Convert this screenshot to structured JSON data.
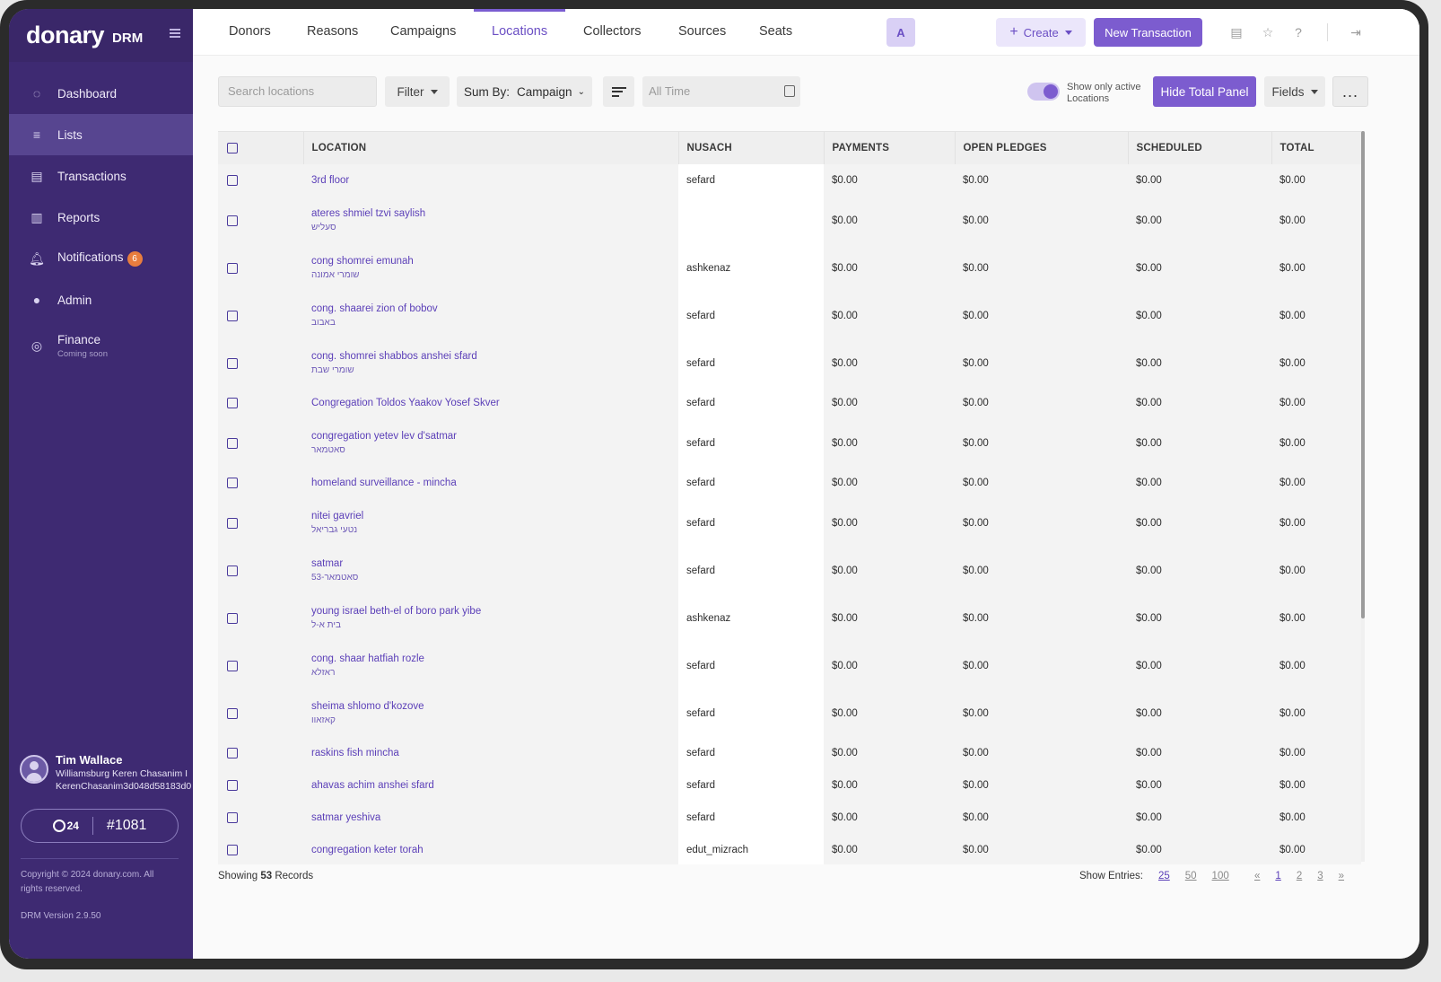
{
  "brand": {
    "logo": "donary",
    "product": "DRM"
  },
  "sidebar": {
    "items": [
      {
        "label": "Dashboard",
        "icon": "dashboard-icon"
      },
      {
        "label": "Lists",
        "icon": "list-icon",
        "active": true
      },
      {
        "label": "Transactions",
        "icon": "transactions-icon"
      },
      {
        "label": "Reports",
        "icon": "reports-icon"
      },
      {
        "label": "Notifications",
        "icon": "bell-icon",
        "badge": "6"
      },
      {
        "label": "Admin",
        "icon": "admin-icon"
      },
      {
        "label": "Finance",
        "sub": "Coming soon",
        "icon": "finance-icon"
      }
    ],
    "user": {
      "name": "Tim Wallace",
      "org": "Williamsburg Keren Chasanim I",
      "id": "KerenChasanim3d048d58183d0"
    },
    "seat": {
      "logo": "24",
      "number": "#1081"
    },
    "copyright": "Copyright © 2024 donary.com. All rights reserved.",
    "version": "DRM Version 2.9.50"
  },
  "topbar": {
    "tabs": [
      "Donors",
      "Reasons",
      "Campaigns",
      "Locations",
      "Collectors",
      "Sources",
      "Seats"
    ],
    "active_tab": "Locations",
    "create_label": "Create",
    "new_transaction_label": "New Transaction"
  },
  "toolbar": {
    "search_placeholder": "Search locations",
    "filter_label": "Filter",
    "sum_by_label": "Sum By:",
    "sum_by_value": "Campaign",
    "date_placeholder": "All Time",
    "toggle_label": "Show only active Locations",
    "toggle_on": true,
    "hide_panel_label": "Hide Total Panel",
    "fields_label": "Fields",
    "more_label": "..."
  },
  "table": {
    "columns": [
      "LOCATION",
      "NUSACH",
      "PAYMENTS",
      "OPEN PLEDGES",
      "SCHEDULED",
      "TOTAL"
    ],
    "rows": [
      {
        "name": "3rd floor",
        "heb": "",
        "nusach": "sefard",
        "payments": "$0.00",
        "open": "$0.00",
        "scheduled": "$0.00",
        "total": "$0.00"
      },
      {
        "name": "ateres shmiel tzvi saylish",
        "heb": "סעליש",
        "nusach": "",
        "payments": "$0.00",
        "open": "$0.00",
        "scheduled": "$0.00",
        "total": "$0.00"
      },
      {
        "name": "cong shomrei emunah",
        "heb": "שומרי אמונה",
        "nusach": "ashkenaz",
        "payments": "$0.00",
        "open": "$0.00",
        "scheduled": "$0.00",
        "total": "$0.00"
      },
      {
        "name": "cong. shaarei zion of bobov",
        "heb": "באבוב",
        "nusach": "sefard",
        "payments": "$0.00",
        "open": "$0.00",
        "scheduled": "$0.00",
        "total": "$0.00"
      },
      {
        "name": "cong. shomrei shabbos anshei sfard",
        "heb": "שומרי שבת",
        "nusach": "sefard",
        "payments": "$0.00",
        "open": "$0.00",
        "scheduled": "$0.00",
        "total": "$0.00"
      },
      {
        "name": "Congregation Toldos Yaakov Yosef Skver",
        "heb": "",
        "nusach": "sefard",
        "payments": "$0.00",
        "open": "$0.00",
        "scheduled": "$0.00",
        "total": "$0.00"
      },
      {
        "name": "congregation yetev lev d'satmar",
        "heb": "סאטמאר",
        "nusach": "sefard",
        "payments": "$0.00",
        "open": "$0.00",
        "scheduled": "$0.00",
        "total": "$0.00"
      },
      {
        "name": "homeland surveillance - mincha",
        "heb": "",
        "nusach": "sefard",
        "payments": "$0.00",
        "open": "$0.00",
        "scheduled": "$0.00",
        "total": "$0.00"
      },
      {
        "name": "nitei gavriel",
        "heb": "נטעי גבריאל",
        "nusach": "sefard",
        "payments": "$0.00",
        "open": "$0.00",
        "scheduled": "$0.00",
        "total": "$0.00"
      },
      {
        "name": "satmar",
        "heb": "סאטמאר-53",
        "nusach": "sefard",
        "payments": "$0.00",
        "open": "$0.00",
        "scheduled": "$0.00",
        "total": "$0.00"
      },
      {
        "name": "young israel beth-el of boro park yibe",
        "heb": "בית א-ל",
        "nusach": "ashkenaz",
        "payments": "$0.00",
        "open": "$0.00",
        "scheduled": "$0.00",
        "total": "$0.00"
      },
      {
        "name": "cong. shaar hatfiah rozle",
        "heb": "ראזלא",
        "nusach": "sefard",
        "payments": "$0.00",
        "open": "$0.00",
        "scheduled": "$0.00",
        "total": "$0.00"
      },
      {
        "name": "sheima shlomo d'kozove",
        "heb": "קאזאוו",
        "nusach": "sefard",
        "payments": "$0.00",
        "open": "$0.00",
        "scheduled": "$0.00",
        "total": "$0.00"
      },
      {
        "name": "raskins fish mincha",
        "heb": "",
        "nusach": "sefard",
        "payments": "$0.00",
        "open": "$0.00",
        "scheduled": "$0.00",
        "total": "$0.00"
      },
      {
        "name": "ahavas achim anshei sfard",
        "heb": "",
        "nusach": "sefard",
        "payments": "$0.00",
        "open": "$0.00",
        "scheduled": "$0.00",
        "total": "$0.00"
      },
      {
        "name": "satmar yeshiva",
        "heb": "",
        "nusach": "sefard",
        "payments": "$0.00",
        "open": "$0.00",
        "scheduled": "$0.00",
        "total": "$0.00"
      },
      {
        "name": "congregation keter torah",
        "heb": "",
        "nusach": "edut_mizrach",
        "payments": "$0.00",
        "open": "$0.00",
        "scheduled": "$0.00",
        "total": "$0.00"
      }
    ]
  },
  "footer": {
    "showing_prefix": "Showing",
    "record_count": "53",
    "showing_suffix": "Records",
    "entries_label": "Show Entries:",
    "entries_options": [
      "25",
      "50",
      "100"
    ],
    "entries_current": "25",
    "pages": [
      "«",
      "1",
      "2",
      "3",
      "»"
    ],
    "current_page": "1"
  },
  "colors": {
    "sidebar": "#3e2a72",
    "accent": "#7c5ccf",
    "link": "#5b3fb8",
    "badge": "#e87d3e"
  }
}
